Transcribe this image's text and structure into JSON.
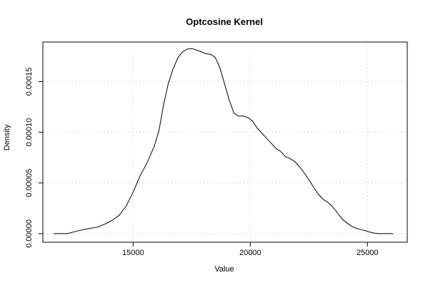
{
  "chart_data": {
    "type": "line",
    "title": "Optcosine Kernel",
    "xlabel": "Value",
    "ylabel": "Density",
    "xlim": [
      11150,
      26700
    ],
    "ylim": [
      -8.5e-06,
      0.000189
    ],
    "grid": true,
    "xticks": [
      15000,
      20000,
      25000
    ],
    "xtick_labels": [
      "15000",
      "20000",
      "25000"
    ],
    "yticks": [
      0,
      5e-05,
      0.0001,
      0.00015
    ],
    "ytick_labels": [
      "0.00000",
      "0.00005",
      "0.00010",
      "0.00015"
    ],
    "series": [
      {
        "color": "#000000",
        "x": [
          11600,
          12200,
          12600,
          13000,
          13500,
          13800,
          14100,
          14400,
          14700,
          15000,
          15300,
          15600,
          15900,
          16100,
          16300,
          16500,
          16700,
          16900,
          17100,
          17300,
          17500,
          17600,
          17700,
          17900,
          18100,
          18300,
          18500,
          18700,
          18900,
          19100,
          19300,
          19500,
          19700,
          19900,
          20100,
          20300,
          20500,
          20700,
          20900,
          21100,
          21300,
          21500,
          21700,
          21900,
          22100,
          22300,
          22500,
          22700,
          22900,
          23100,
          23300,
          23500,
          23700,
          23900,
          24100,
          24300,
          24500,
          24700,
          24900,
          25100,
          25300,
          25500,
          25700,
          26100
        ],
        "y": [
          0.0,
          0.0,
          2.5e-06,
          4.5e-06,
          6.5e-06,
          9.5e-06,
          1.3e-05,
          1.8e-05,
          2.7e-05,
          4.1e-05,
          5.7e-05,
          7e-05,
          8.6e-05,
          0.000101,
          0.000127,
          0.000148,
          0.000162,
          0.000173,
          0.000179,
          0.000182,
          0.0001825,
          0.000182,
          0.000181,
          0.0001795,
          0.0001775,
          0.000177,
          0.000174,
          0.000164,
          0.000148,
          0.000132,
          0.000119,
          0.000116,
          0.000116,
          0.0001145,
          0.000111,
          0.000104,
          9.9e-05,
          9.4e-05,
          8.9e-05,
          8.4e-05,
          8.1e-05,
          7.6e-05,
          7.4e-05,
          7.1e-05,
          6.6e-05,
          6e-05,
          5.3e-05,
          4.6e-05,
          3.9e-05,
          3.4e-05,
          3.1e-05,
          2.7e-05,
          2.1e-05,
          1.5e-05,
          1.1e-05,
          7.5e-06,
          5.5e-06,
          4e-06,
          3e-06,
          1.5e-06,
          5e-07,
          0.0,
          0.0,
          0.0
        ]
      }
    ]
  }
}
